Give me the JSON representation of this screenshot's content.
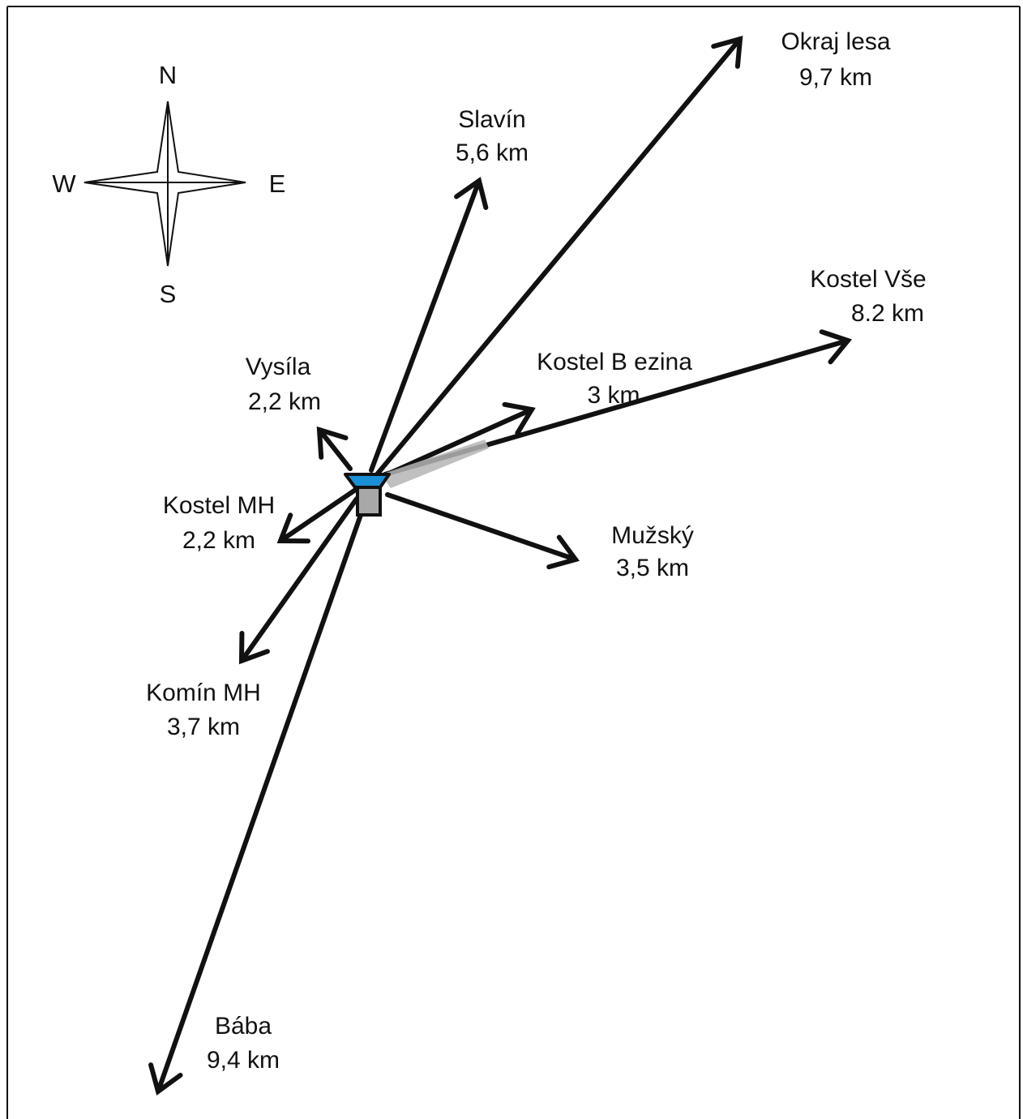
{
  "compass": {
    "north": "N",
    "south": "S",
    "east": "E",
    "west": "W"
  },
  "targets": [
    {
      "key": "okraj",
      "name": "Okraj lesa",
      "distance": "9,7 km"
    },
    {
      "key": "slavin",
      "name": "Slavín",
      "distance": "5,6 km"
    },
    {
      "key": "kostel-vse",
      "name": "Kostel Vše",
      "distance": "8.2 km"
    },
    {
      "key": "vysila",
      "name": "Vysíla",
      "distance": "2,2 km"
    },
    {
      "key": "kostel-brezina",
      "name": "Kostel B ezina",
      "distance": "3 km"
    },
    {
      "key": "kostel-mh",
      "name": "Kostel MH",
      "distance": "2,2 km"
    },
    {
      "key": "muzsky",
      "name": "Mužský",
      "distance": "3,5 km"
    },
    {
      "key": "komin-mh",
      "name": "Komín MH",
      "distance": "3,7 km"
    },
    {
      "key": "baba",
      "name": "Bába",
      "distance": "9,4 km"
    }
  ],
  "colors": {
    "arrow": "#111111",
    "lens": "#1a8fd6",
    "body": "#a8a8a8",
    "frame": "#111111"
  }
}
